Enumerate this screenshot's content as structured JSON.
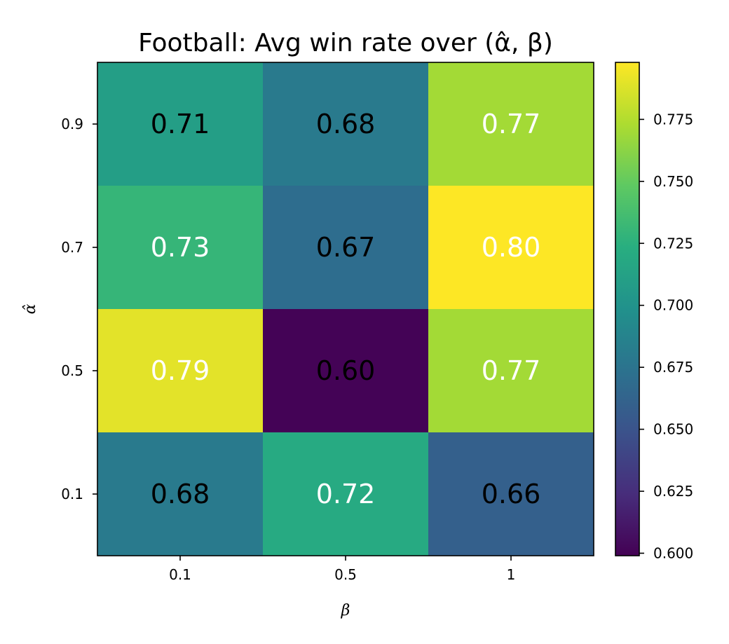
{
  "chart_data": {
    "type": "heatmap",
    "title": "Football: Avg win rate over (α̂, β)",
    "xlabel": "β",
    "ylabel": "α̂",
    "x_categories": [
      "0.1",
      "0.5",
      "1"
    ],
    "y_categories_top_to_bottom": [
      "0.9",
      "0.7",
      "0.5",
      "0.1"
    ],
    "values": [
      [
        0.71,
        0.68,
        0.77
      ],
      [
        0.73,
        0.67,
        0.8
      ],
      [
        0.79,
        0.6,
        0.77
      ],
      [
        0.68,
        0.72,
        0.66
      ]
    ],
    "value_labels": [
      [
        "0.71",
        "0.68",
        "0.77"
      ],
      [
        "0.73",
        "0.67",
        "0.80"
      ],
      [
        "0.79",
        "0.60",
        "0.77"
      ],
      [
        "0.68",
        "0.72",
        "0.66"
      ]
    ],
    "label_colors": [
      [
        "#000000",
        "#000000",
        "#ffffff"
      ],
      [
        "#ffffff",
        "#000000",
        "#ffffff"
      ],
      [
        "#ffffff",
        "#000000",
        "#ffffff"
      ],
      [
        "#000000",
        "#ffffff",
        "#000000"
      ]
    ],
    "colormap": "viridis",
    "vmin": 0.599,
    "vmax": 0.798,
    "colorbar_ticks": [
      0.6,
      0.625,
      0.65,
      0.675,
      0.7,
      0.725,
      0.75,
      0.775
    ],
    "colorbar_tick_labels": [
      "0.600",
      "0.625",
      "0.650",
      "0.675",
      "0.700",
      "0.725",
      "0.750",
      "0.775"
    ]
  }
}
